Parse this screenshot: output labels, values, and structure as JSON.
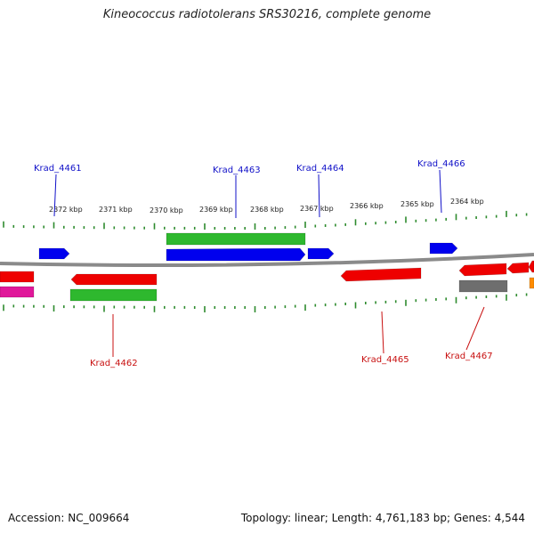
{
  "title": "Kineococcus radiotolerans SRS30216, complete genome",
  "accession_text": "Accession: NC_009664",
  "summary_text": "Topology: linear; Length: 4,761,183 bp; Genes: 4,544",
  "colors": {
    "backbone": "#8a8a8a",
    "tick": "#2e8b2e",
    "label_top": "#1010c8",
    "label_bottom": "#c81010",
    "gene_blue": "#0000ee",
    "gene_green": "#2eb82e",
    "gene_red": "#ee0000",
    "gene_pink": "#e0189a",
    "gene_gray": "#6e6e6e",
    "gene_orange": "#ff8c00"
  },
  "scale_labels": [
    "2372 kbp",
    "2371 kbp",
    "2370 kbp",
    "2369 kbp",
    "2368 kbp",
    "2367 kbp",
    "2366 kbp",
    "2365 kbp",
    "2364 kbp"
  ],
  "gene_labels_top": [
    "Krad_4461",
    "Krad_4463",
    "Krad_4464",
    "Krad_4466"
  ],
  "gene_labels_bottom": [
    "Krad_4462",
    "Krad_4465",
    "Krad_4467"
  ]
}
